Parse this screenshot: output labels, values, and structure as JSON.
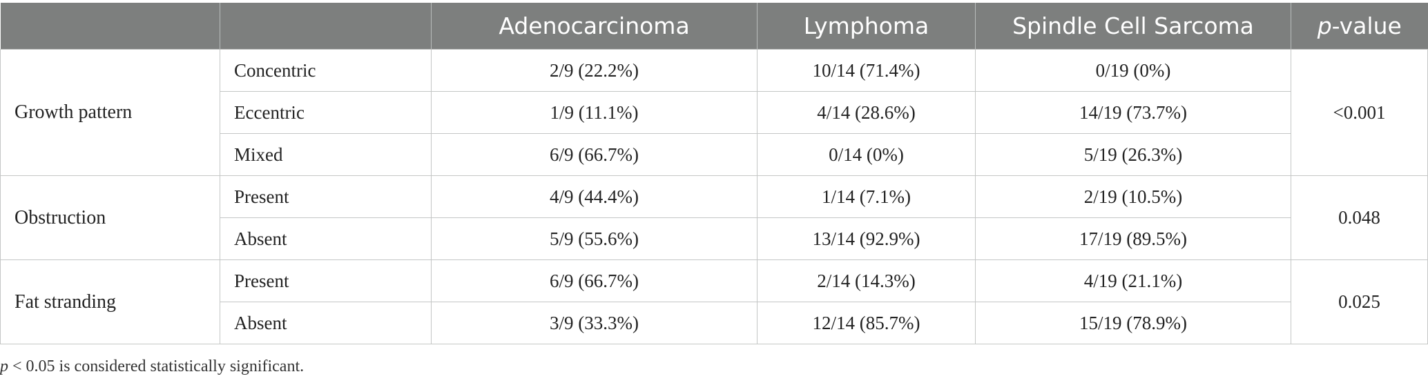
{
  "table": {
    "columns": [
      "",
      "",
      "Adenocarcinoma",
      "Lymphoma",
      "Spindle Cell Sarcoma"
    ],
    "pvalue_header": {
      "italic": "p",
      "rest": "-value"
    },
    "groups": [
      {
        "label": "Growth pattern",
        "p_value": "<0.001",
        "rows": [
          {
            "label": "Concentric",
            "adeno": "2/9 (22.2%)",
            "lymphoma": "10/14 (71.4%)",
            "sarcoma": "0/19 (0%)"
          },
          {
            "label": "Eccentric",
            "adeno": "1/9 (11.1%)",
            "lymphoma": "4/14 (28.6%)",
            "sarcoma": "14/19 (73.7%)"
          },
          {
            "label": "Mixed",
            "adeno": "6/9 (66.7%)",
            "lymphoma": "0/14 (0%)",
            "sarcoma": "5/19 (26.3%)"
          }
        ]
      },
      {
        "label": "Obstruction",
        "p_value": "0.048",
        "rows": [
          {
            "label": "Present",
            "adeno": "4/9 (44.4%)",
            "lymphoma": "1/14 (7.1%)",
            "sarcoma": "2/19 (10.5%)"
          },
          {
            "label": "Absent",
            "adeno": "5/9 (55.6%)",
            "lymphoma": "13/14 (92.9%)",
            "sarcoma": "17/19 (89.5%)"
          }
        ]
      },
      {
        "label": "Fat stranding",
        "p_value": "0.025",
        "rows": [
          {
            "label": "Present",
            "adeno": "6/9 (66.7%)",
            "lymphoma": "2/14 (14.3%)",
            "sarcoma": "4/19 (21.1%)"
          },
          {
            "label": "Absent",
            "adeno": "3/9 (33.3%)",
            "lymphoma": "12/14 (85.7%)",
            "sarcoma": "15/19 (78.9%)"
          }
        ]
      }
    ]
  },
  "footnote": {
    "italic": "p",
    "rest": " < 0.05 is considered statistically significant."
  },
  "colors": {
    "header_bg": "#7d7f7e",
    "header_text": "#ffffff",
    "grid": "#c4c6c5"
  }
}
